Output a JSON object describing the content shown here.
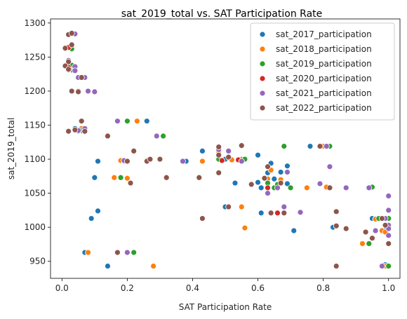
{
  "chart_data": {
    "type": "scatter",
    "title": "sat_2019_total vs. SAT Participation Rate",
    "xlabel": "SAT Participation Rate",
    "ylabel": "sat_2019_total",
    "xlim": [
      -0.035,
      1.035
    ],
    "ylim": [
      925,
      1306
    ],
    "xticks": [
      0.0,
      0.2,
      0.4,
      0.6,
      0.8,
      1.0
    ],
    "xtick_labels": [
      "0.0",
      "0.2",
      "0.4",
      "0.6",
      "0.8",
      "1.0"
    ],
    "yticks": [
      950,
      1000,
      1050,
      1100,
      1150,
      1200,
      1250,
      1300
    ],
    "ytick_labels": [
      "950",
      "1000",
      "1050",
      "1100",
      "1150",
      "1200",
      "1250",
      "1300"
    ],
    "grid": false,
    "legend_position": "top-right",
    "series": [
      {
        "name": "sat_2017_participation",
        "color": "#1f77b4",
        "points": [
          [
            0.03,
            1284
          ],
          [
            0.03,
            1263
          ],
          [
            0.02,
            1242
          ],
          [
            0.03,
            1238
          ],
          [
            0.04,
            1233
          ],
          [
            0.03,
            1231
          ],
          [
            0.04,
            1230
          ],
          [
            0.03,
            1200
          ],
          [
            0.04,
            1145
          ],
          [
            0.05,
            1142
          ],
          [
            0.06,
            1143
          ],
          [
            0.07,
            1140
          ],
          [
            0.11,
            1097
          ],
          [
            0.1,
            1073
          ],
          [
            0.11,
            1024
          ],
          [
            0.09,
            1013
          ],
          [
            0.07,
            963
          ],
          [
            0.14,
            943
          ],
          [
            0.26,
            1156
          ],
          [
            0.43,
            1112
          ],
          [
            0.38,
            1097
          ],
          [
            0.5,
            1100
          ],
          [
            0.49,
            1098
          ],
          [
            0.54,
            1099
          ],
          [
            0.5,
            1030
          ],
          [
            0.53,
            1065
          ],
          [
            0.6,
            1106
          ],
          [
            0.6,
            1066
          ],
          [
            0.61,
            1021
          ],
          [
            0.61,
            1058
          ],
          [
            0.63,
            1080
          ],
          [
            0.64,
            1094
          ],
          [
            0.65,
            1071
          ],
          [
            0.67,
            1081
          ],
          [
            0.69,
            1090
          ],
          [
            0.69,
            1064
          ],
          [
            0.71,
            995
          ],
          [
            0.76,
            1119
          ],
          [
            0.83,
            1000
          ],
          [
            0.93,
            993
          ],
          [
            0.95,
            1013
          ],
          [
            0.96,
            1012
          ],
          [
            1.0,
            1013
          ],
          [
            0.99,
            995
          ],
          [
            1.0,
            976
          ],
          [
            0.99,
            945
          ]
        ]
      },
      {
        "name": "sat_2018_participation",
        "color": "#ff7f0e",
        "points": [
          [
            0.03,
            1284
          ],
          [
            0.02,
            1265
          ],
          [
            0.04,
            1232
          ],
          [
            0.05,
            1220
          ],
          [
            0.06,
            1145
          ],
          [
            0.06,
            1141
          ],
          [
            0.08,
            963
          ],
          [
            0.16,
            1073
          ],
          [
            0.18,
            1098
          ],
          [
            0.2,
            1072
          ],
          [
            0.23,
            1156
          ],
          [
            0.28,
            943
          ],
          [
            0.43,
            1097
          ],
          [
            0.48,
            1111
          ],
          [
            0.52,
            1099
          ],
          [
            0.55,
            1100
          ],
          [
            0.55,
            1030
          ],
          [
            0.56,
            999
          ],
          [
            0.63,
            1071
          ],
          [
            0.64,
            1084
          ],
          [
            0.66,
            1057
          ],
          [
            0.67,
            1070
          ],
          [
            0.75,
            1058
          ],
          [
            0.8,
            1119
          ],
          [
            0.81,
            1059
          ],
          [
            0.84,
            1002
          ],
          [
            0.92,
            976
          ],
          [
            0.96,
            1012
          ],
          [
            0.98,
            995
          ],
          [
            0.99,
            993
          ],
          [
            0.99,
            943
          ]
        ]
      },
      {
        "name": "sat_2019_participation",
        "color": "#2ca02c",
        "points": [
          [
            0.03,
            1262
          ],
          [
            0.03,
            1238
          ],
          [
            0.04,
            1232
          ],
          [
            0.05,
            1200
          ],
          [
            0.06,
            1142
          ],
          [
            0.07,
            1144
          ],
          [
            0.1,
            1199
          ],
          [
            0.18,
            1073
          ],
          [
            0.19,
            1097
          ],
          [
            0.2,
            1156
          ],
          [
            0.22,
            963
          ],
          [
            0.31,
            1134
          ],
          [
            0.48,
            1100
          ],
          [
            0.54,
            1099
          ],
          [
            0.56,
            1100
          ],
          [
            0.63,
            1065
          ],
          [
            0.65,
            1058
          ],
          [
            0.66,
            1063
          ],
          [
            0.68,
            1119
          ],
          [
            0.68,
            1021
          ],
          [
            0.7,
            1058
          ],
          [
            0.82,
            1119
          ],
          [
            0.94,
            976
          ],
          [
            0.95,
            1059
          ],
          [
            0.97,
            1013
          ],
          [
            0.99,
            1013
          ],
          [
            1.0,
            1013
          ],
          [
            1.0,
            943
          ]
        ]
      },
      {
        "name": "sat_2020_participation",
        "color": "#d62728",
        "points": [
          [
            0.02,
            1264
          ],
          [
            0.02,
            1235
          ],
          [
            0.04,
            1232
          ],
          [
            0.05,
            1141
          ],
          [
            0.07,
            1142
          ],
          [
            0.26,
            1098
          ],
          [
            0.49,
            1098
          ],
          [
            0.54,
            1099
          ],
          [
            0.63,
            1058
          ],
          [
            0.66,
            1021
          ]
        ]
      },
      {
        "name": "sat_2021_participation",
        "color": "#9467bd",
        "points": [
          [
            0.03,
            1284
          ],
          [
            0.03,
            1268
          ],
          [
            0.04,
            1284
          ],
          [
            0.02,
            1245
          ],
          [
            0.04,
            1236
          ],
          [
            0.04,
            1230
          ],
          [
            0.05,
            1220
          ],
          [
            0.07,
            1220
          ],
          [
            0.08,
            1200
          ],
          [
            0.1,
            1199
          ],
          [
            0.05,
            1142
          ],
          [
            0.07,
            1145
          ],
          [
            0.17,
            1156
          ],
          [
            0.19,
            1098
          ],
          [
            0.2,
            963
          ],
          [
            0.29,
            1134
          ],
          [
            0.37,
            1097
          ],
          [
            0.48,
            1114
          ],
          [
            0.51,
            1112
          ],
          [
            0.55,
            1097
          ],
          [
            0.58,
            1063
          ],
          [
            0.63,
            1050
          ],
          [
            0.66,
            1058
          ],
          [
            0.68,
            1030
          ],
          [
            0.69,
            1081
          ],
          [
            0.73,
            1022
          ],
          [
            0.79,
            1064
          ],
          [
            0.81,
            1119
          ],
          [
            0.82,
            1089
          ],
          [
            0.87,
            1058
          ],
          [
            0.94,
            1058
          ],
          [
            0.96,
            995
          ],
          [
            0.98,
            943
          ],
          [
            1.0,
            1046
          ],
          [
            1.0,
            1025
          ],
          [
            1.0,
            1003
          ],
          [
            1.0,
            998
          ],
          [
            1.0,
            988
          ],
          [
            0.99,
            1013
          ]
        ]
      },
      {
        "name": "sat_2022_participation",
        "color": "#8c564b",
        "points": [
          [
            0.01,
            1263
          ],
          [
            0.02,
            1243
          ],
          [
            0.01,
            1237
          ],
          [
            0.02,
            1231
          ],
          [
            0.02,
            1232
          ],
          [
            0.02,
            1283
          ],
          [
            0.03,
            1285
          ],
          [
            0.03,
            1268
          ],
          [
            0.03,
            1200
          ],
          [
            0.05,
            1199
          ],
          [
            0.04,
            1143
          ],
          [
            0.02,
            1141
          ],
          [
            0.06,
            1156
          ],
          [
            0.07,
            1141
          ],
          [
            0.06,
            1220
          ],
          [
            0.14,
            1134
          ],
          [
            0.2,
            1097
          ],
          [
            0.21,
            1065
          ],
          [
            0.22,
            1112
          ],
          [
            0.17,
            963
          ],
          [
            0.26,
            1097
          ],
          [
            0.27,
            1100
          ],
          [
            0.3,
            1100
          ],
          [
            0.32,
            1073
          ],
          [
            0.42,
            1073
          ],
          [
            0.43,
            1013
          ],
          [
            0.48,
            1118
          ],
          [
            0.48,
            1106
          ],
          [
            0.48,
            1080
          ],
          [
            0.51,
            1030
          ],
          [
            0.51,
            1103
          ],
          [
            0.55,
            1120
          ],
          [
            0.58,
            1063
          ],
          [
            0.62,
            1072
          ],
          [
            0.63,
            1089
          ],
          [
            0.64,
            1021
          ],
          [
            0.67,
            1065
          ],
          [
            0.68,
            1021
          ],
          [
            0.79,
            1119
          ],
          [
            0.82,
            1058
          ],
          [
            0.84,
            1023
          ],
          [
            0.84,
            1002
          ],
          [
            0.84,
            943
          ],
          [
            0.87,
            998
          ],
          [
            0.93,
            993
          ],
          [
            0.95,
            984
          ],
          [
            0.98,
            1013
          ],
          [
            0.99,
            1003
          ],
          [
            1.0,
            976
          ]
        ]
      }
    ]
  }
}
